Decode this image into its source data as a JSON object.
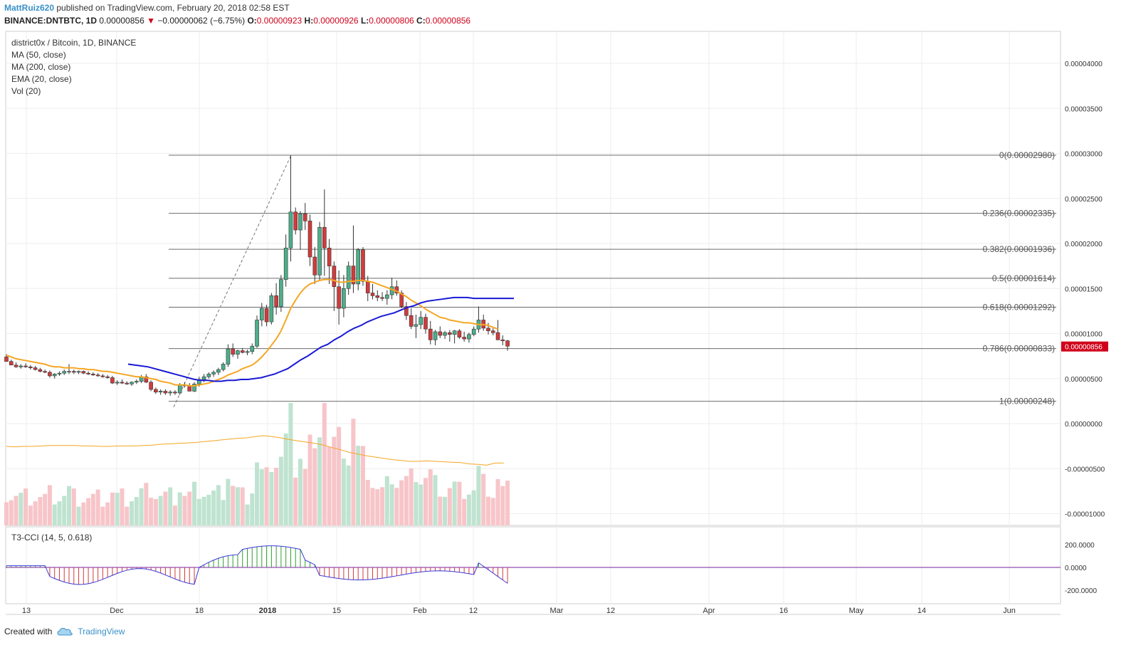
{
  "header": {
    "user": "MattRuiz620",
    "published": " published on TradingView.com, February 20, 2018 02:58 EST"
  },
  "ohlc": {
    "symbol": "BINANCE:DNTBTC, 1D",
    "last": "0.00000856",
    "change_arrow": "▼",
    "change": "−0.00000062 (−6.75%)",
    "o_label": "O:",
    "o": "0.00000923",
    "h_label": "H:",
    "h": "0.00000926",
    "l_label": "L:",
    "l": "0.00000806",
    "c_label": "C:",
    "c": "0.00000856"
  },
  "legend": {
    "title": "district0x / Bitcoin, 1D, BINANCE",
    "ma50": "MA (50, close)",
    "ma200": "MA (200, close)",
    "ema20": "EMA (20, close)",
    "vol": "Vol (20)"
  },
  "cci_label": "T3-CCI (14, 5, 0.618)",
  "footer": {
    "created": "Created with",
    "brand": "TradingView"
  },
  "colors": {
    "up": "#4caf8a",
    "down": "#d23b3b",
    "up_vol": "#bfe3d0",
    "down_vol": "#f7c5c9",
    "ma50": "#1919d6",
    "ema20": "#f5a623",
    "fib": "#6b6b6b",
    "price_tag": "#d0021b"
  },
  "chart_data": [
    {
      "type": "candlestick",
      "title": "district0x / Bitcoin, 1D, BINANCE",
      "x_ticks": [
        "13",
        "Dec",
        "18",
        "2018",
        "15",
        "Feb",
        "12",
        "Mar",
        "12",
        "Apr",
        "16",
        "May",
        "14",
        "Jun"
      ],
      "y_ticks": [
        "0.00004000",
        "0.00003500",
        "0.00003000",
        "0.00002500",
        "0.00002000",
        "0.00001500",
        "0.00001000",
        "0.00000500",
        "0.00000000",
        "-0.00000500",
        "-0.00001000"
      ],
      "ylim": [
        -1.02e-05,
        4.35e-05
      ],
      "last_price_tag": "0.00000856",
      "fib_levels": [
        {
          "label": "0(0.00002980)",
          "value": 2.98e-05
        },
        {
          "label": "0.236(0.00002335)",
          "value": 2.335e-05
        },
        {
          "label": "0.382(0.00001936)",
          "value": 1.936e-05
        },
        {
          "label": "0.5(0.00001614)",
          "value": 1.614e-05
        },
        {
          "label": "0.618(0.00001292)",
          "value": 1.292e-05
        },
        {
          "label": "0.786(0.00000833)",
          "value": 8.33e-06
        },
        {
          "label": "1(0.00000248)",
          "value": 2.48e-06
        }
      ],
      "candles_ohlc": [
        [
          7.4e-06,
          7.7e-06,
          6.9e-06,
          6.9e-06
        ],
        [
          6.9e-06,
          7.1e-06,
          6.5e-06,
          6.5e-06
        ],
        [
          6.5e-06,
          6.8e-06,
          6.2e-06,
          6.3e-06
        ],
        [
          6.3e-06,
          6.6e-06,
          6.1e-06,
          6.4e-06
        ],
        [
          6.4e-06,
          6.7e-06,
          6.2e-06,
          6.3e-06
        ],
        [
          6.3e-06,
          6.5e-06,
          6e-06,
          6.2e-06
        ],
        [
          6.2e-06,
          6.4e-06,
          5.9e-06,
          6e-06
        ],
        [
          6e-06,
          6.2e-06,
          5.7e-06,
          5.8e-06
        ],
        [
          5.8e-06,
          6e-06,
          5.6e-06,
          5.7e-06
        ],
        [
          5.7e-06,
          5.9e-06,
          5.1e-06,
          5.3e-06
        ],
        [
          5.3e-06,
          5.6e-06,
          5e-06,
          5.5e-06
        ],
        [
          5.5e-06,
          5.8e-06,
          5.3e-06,
          5.6e-06
        ],
        [
          5.6e-06,
          6e-06,
          5.4e-06,
          5.8e-06
        ],
        [
          5.8e-06,
          6.6e-06,
          5.5e-06,
          5.8e-06
        ],
        [
          5.8e-06,
          6e-06,
          5.5e-06,
          5.7e-06
        ],
        [
          5.7e-06,
          5.9e-06,
          5.5e-06,
          5.8e-06
        ],
        [
          5.8e-06,
          5.9e-06,
          5.5e-06,
          5.6e-06
        ],
        [
          5.6e-06,
          5.8e-06,
          5.4e-06,
          5.5e-06
        ],
        [
          5.5e-06,
          5.7e-06,
          5.3e-06,
          5.4e-06
        ],
        [
          5.4e-06,
          5.6e-06,
          5.2e-06,
          5.3e-06
        ],
        [
          5.3e-06,
          5.5e-06,
          5.1e-06,
          5.2e-06
        ],
        [
          5.2e-06,
          5.4e-06,
          5e-06,
          5.1e-06
        ],
        [
          5.1e-06,
          5.3e-06,
          4.4e-06,
          4.5e-06
        ],
        [
          4.5e-06,
          4.8e-06,
          4.3e-06,
          4.6e-06
        ],
        [
          4.6e-06,
          4.9e-06,
          4.4e-06,
          4.5e-06
        ],
        [
          4.5e-06,
          4.7e-06,
          4.3e-06,
          4.4e-06
        ],
        [
          4.4e-06,
          4.7e-06,
          4.2e-06,
          4.6e-06
        ],
        [
          4.6e-06,
          4.9e-06,
          4.4e-06,
          4.7e-06
        ],
        [
          4.7e-06,
          5.4e-06,
          4.5e-06,
          5.2e-06
        ],
        [
          5.2e-06,
          5.5e-06,
          4.5e-06,
          4.6e-06
        ],
        [
          4.6e-06,
          4.8e-06,
          3.6e-06,
          3.8e-06
        ],
        [
          3.8e-06,
          4e-06,
          3.3e-06,
          3.5e-06
        ],
        [
          3.5e-06,
          3.8e-06,
          3.2e-06,
          3.6e-06
        ],
        [
          3.6e-06,
          3.8e-06,
          3.2e-06,
          3.4e-06
        ],
        [
          3.4e-06,
          3.7e-06,
          3.1e-06,
          3.5e-06
        ],
        [
          3.5e-06,
          3.7e-06,
          3.2e-06,
          3.4e-06
        ],
        [
          3.4e-06,
          4.5e-06,
          3.2e-06,
          4.3e-06
        ],
        [
          4.3e-06,
          4.6e-06,
          4e-06,
          4.2e-06
        ],
        [
          4.2e-06,
          4.5e-06,
          3.9e-06,
          3.6e-06
        ],
        [
          3.6e-06,
          4.6e-06,
          3.5e-06,
          4.4e-06
        ],
        [
          4.4e-06,
          5.2e-06,
          4.1e-06,
          4.9e-06
        ],
        [
          4.9e-06,
          5.5e-06,
          4.6e-06,
          5.2e-06
        ],
        [
          5.2e-06,
          5.7e-06,
          5e-06,
          5.5e-06
        ],
        [
          5.5e-06,
          5.9e-06,
          5.2e-06,
          5.7e-06
        ],
        [
          5.7e-06,
          6.2e-06,
          5.4e-06,
          6e-06
        ],
        [
          6e-06,
          6.8e-06,
          5.8e-06,
          6.6e-06
        ],
        [
          6.6e-06,
          8.8e-06,
          6.3e-06,
          8.3e-06
        ],
        [
          8.3e-06,
          8.9e-06,
          7.4e-06,
          7.7e-06
        ],
        [
          7.7e-06,
          8.2e-06,
          7.2e-06,
          8.1e-06
        ],
        [
          8.1e-06,
          8.4e-06,
          7.8e-06,
          7.9e-06
        ],
        [
          7.9e-06,
          8.2e-06,
          7.6e-06,
          8e-06
        ],
        [
          8e-06,
          8.9e-06,
          7.7e-06,
          8.6e-06
        ],
        [
          8.6e-06,
          1.2e-05,
          8.4e-06,
          1.15e-05
        ],
        [
          1.15e-05,
          1.34e-05,
          1.08e-05,
          1.28e-05
        ],
        [
          1.28e-05,
          1.32e-05,
          1.08e-05,
          1.13e-05
        ],
        [
          1.13e-05,
          1.45e-05,
          1.1e-05,
          1.42e-05
        ],
        [
          1.42e-05,
          1.56e-05,
          1.21e-05,
          1.3e-05
        ],
        [
          1.3e-05,
          1.65e-05,
          1.24e-05,
          1.6e-05
        ],
        [
          1.6e-05,
          2.1e-05,
          1.52e-05,
          1.95e-05
        ],
        [
          1.95e-05,
          2.98e-05,
          1.8e-05,
          2.35e-05
        ],
        [
          2.35e-05,
          2.4e-05,
          2.1e-05,
          2.15e-05
        ],
        [
          2.15e-05,
          2.36e-05,
          1.93e-05,
          2.33e-05
        ],
        [
          2.33e-05,
          2.45e-05,
          2.15e-05,
          2.25e-05
        ],
        [
          2.25e-05,
          2.32e-05,
          1.75e-05,
          1.85e-05
        ],
        [
          1.85e-05,
          1.96e-05,
          1.55e-05,
          1.65e-05
        ],
        [
          1.65e-05,
          2.24e-05,
          1.58e-05,
          2.18e-05
        ],
        [
          2.18e-05,
          2.6e-05,
          1.64e-05,
          1.95e-05
        ],
        [
          1.95e-05,
          2.05e-05,
          1.55e-05,
          1.75e-05
        ],
        [
          1.75e-05,
          1.8e-05,
          1.25e-05,
          1.52e-05
        ],
        [
          1.52e-05,
          1.7e-05,
          1.1e-05,
          1.28e-05
        ],
        [
          1.28e-05,
          1.65e-05,
          1.18e-05,
          1.5e-05
        ],
        [
          1.5e-05,
          1.8e-05,
          1.43e-05,
          1.75e-05
        ],
        [
          1.75e-05,
          2.2e-05,
          1.45e-05,
          1.55e-05
        ],
        [
          1.55e-05,
          1.95e-05,
          1.48e-05,
          1.93e-05
        ],
        [
          1.93e-05,
          1.96e-05,
          1.53e-05,
          1.58e-05
        ],
        [
          1.58e-05,
          1.64e-05,
          1.36e-05,
          1.45e-05
        ],
        [
          1.45e-05,
          1.55e-05,
          1.38e-05,
          1.42e-05
        ],
        [
          1.42e-05,
          1.48e-05,
          1.36e-05,
          1.4e-05
        ],
        [
          1.4e-05,
          1.46e-05,
          1.36e-05,
          1.39e-05
        ],
        [
          1.39e-05,
          1.48e-05,
          1.32e-05,
          1.43e-05
        ],
        [
          1.43e-05,
          1.62e-05,
          1.38e-05,
          1.52e-05
        ],
        [
          1.52e-05,
          1.59e-05,
          1.42e-05,
          1.45e-05
        ],
        [
          1.45e-05,
          1.48e-05,
          1.28e-05,
          1.3e-05
        ],
        [
          1.3e-05,
          1.35e-05,
          1.15e-05,
          1.2e-05
        ],
        [
          1.2e-05,
          1.28e-05,
          1.05e-05,
          1.08e-05
        ],
        [
          1.08e-05,
          1.21e-05,
          9.5e-06,
          1.1e-05
        ],
        [
          1.1e-05,
          1.25e-05,
          1.05e-05,
          1.18e-05
        ],
        [
          1.18e-05,
          1.22e-05,
          1e-05,
          1.05e-05
        ],
        [
          1.05e-05,
          1.14e-05,
          8.8e-06,
          9.3e-06
        ],
        [
          9.3e-06,
          1.04e-05,
          8.7e-06,
          1.02e-05
        ],
        [
          1.02e-05,
          1.08e-05,
          9.5e-06,
          9.8e-06
        ],
        [
          9.8e-06,
          1.03e-05,
          9.4e-06,
          1.01e-05
        ],
        [
          1.01e-05,
          1.04e-05,
          9.1e-06,
          9.9e-06
        ],
        [
          9.9e-06,
          1.04e-05,
          8.9e-06,
          1.03e-05
        ],
        [
          1.03e-05,
          1.05e-05,
          9.4e-06,
          9.6e-06
        ],
        [
          9.6e-06,
          1.02e-05,
          9.1e-06,
          9.4e-06
        ],
        [
          9.4e-06,
          1.01e-05,
          9e-06,
          9.9e-06
        ],
        [
          9.9e-06,
          1.08e-05,
          9.7e-06,
          1.05e-05
        ],
        [
          1.05e-05,
          1.3e-05,
          1.01e-05,
          1.15e-05
        ],
        [
          1.15e-05,
          1.21e-05,
          1.03e-05,
          1.06e-05
        ],
        [
          1.06e-05,
          1.12e-05,
          9.9e-06,
          1.03e-05
        ],
        [
          1.03e-05,
          1.06e-05,
          9.8e-06,
          1.01e-05
        ],
        [
          1.01e-05,
          1.15e-05,
          9.4e-06,
          9.3e-06
        ],
        [
          9.3e-06,
          9.8e-06,
          8.7e-06,
          9.2e-06
        ],
        [
          9.2e-06,
          9.3e-06,
          8.1e-06,
          8.6e-06
        ]
      ],
      "ema20": [
        7.6e-06,
        7.4e-06,
        7.2e-06,
        7.1e-06,
        7e-06,
        6.9e-06,
        6.8e-06,
        6.7e-06,
        6.6e-06,
        6.4e-06,
        6.3e-06,
        6.3e-06,
        6.2e-06,
        6.2e-06,
        6.2e-06,
        6.1e-06,
        6.1e-06,
        6e-06,
        6e-06,
        5.9e-06,
        5.8e-06,
        5.8e-06,
        5.7e-06,
        5.6e-06,
        5.5e-06,
        5.4e-06,
        5.3e-06,
        5.2e-06,
        5.2e-06,
        5.1e-06,
        5e-06,
        4.9e-06,
        4.7e-06,
        4.6e-06,
        4.5e-06,
        4.3e-06,
        4.3e-06,
        4.3e-06,
        4.2e-06,
        4.2e-06,
        4.3e-06,
        4.4e-06,
        4.5e-06,
        4.7e-06,
        4.9e-06,
        5.1e-06,
        5.4e-06,
        5.6e-06,
        5.8e-06,
        6.1e-06,
        6.3e-06,
        6.5e-06,
        6.9e-06,
        7.4e-06,
        8e-06,
        8.7e-06,
        9.4e-06,
        1.03e-05,
        1.15e-05,
        1.28e-05,
        1.37e-05,
        1.45e-05,
        1.51e-05,
        1.55e-05,
        1.57e-05,
        1.59e-05,
        1.6e-05,
        1.6e-05,
        1.59e-05,
        1.57e-05,
        1.57e-05,
        1.58e-05,
        1.58e-05,
        1.59e-05,
        1.59e-05,
        1.58e-05,
        1.57e-05,
        1.55e-05,
        1.53e-05,
        1.51e-05,
        1.49e-05,
        1.47e-05,
        1.44e-05,
        1.41e-05,
        1.37e-05,
        1.34e-05,
        1.31e-05,
        1.27e-05,
        1.24e-05,
        1.21e-05,
        1.18e-05,
        1.17e-05,
        1.15e-05,
        1.14e-05,
        1.13e-05,
        1.12e-05,
        1.12e-05,
        1.11e-05,
        1.1e-05,
        1.1e-05,
        1.09e-05,
        1.07e-05,
        1.05e-05
      ],
      "ma50": [
        6.6e-06,
        6.5e-06,
        6.4e-06,
        6.3e-06,
        6.1e-06,
        5.9e-06,
        5.7e-06,
        5.5e-06,
        5.3e-06,
        5.1e-06,
        4.9e-06,
        4.8e-06,
        4.8e-06,
        4.7e-06,
        4.7e-06,
        4.8e-06,
        4.8e-06,
        4.9e-06,
        4.9e-06,
        5e-06,
        5.1e-06,
        5.3e-06,
        5.5e-06,
        5.8e-06,
        6.1e-06,
        6.6e-06,
        7.1e-06,
        7.5e-06,
        8e-06,
        8.5e-06,
        8.8e-06,
        9.3e-06,
        9.7e-06,
        1.02e-05,
        1.06e-05,
        1.09e-05,
        1.13e-05,
        1.16e-05,
        1.19e-05,
        1.21e-05,
        1.23e-05,
        1.26e-05,
        1.29e-05,
        1.31e-05,
        1.34e-05,
        1.36e-05,
        1.37e-05,
        1.38e-05,
        1.39e-05,
        1.4e-05,
        1.4e-05,
        1.4e-05,
        1.39e-05,
        1.39e-05,
        1.39e-05,
        1.39e-05,
        1.39e-05,
        1.39e-05,
        1.39e-05
      ],
      "volume_scale_note": "relative",
      "volume_ma20": [
        0.55,
        0.54,
        0.55,
        0.55,
        0.56,
        0.57,
        0.57,
        0.57,
        0.57,
        0.56,
        0.56,
        0.55,
        0.55,
        0.56,
        0.56,
        0.56,
        0.57,
        0.58,
        0.6,
        0.61,
        0.62,
        0.63,
        0.64,
        0.66,
        0.68,
        0.7,
        0.72,
        0.74,
        0.75,
        0.78,
        0.8,
        0.78,
        0.75,
        0.71,
        0.68,
        0.65,
        0.62,
        0.58,
        0.52,
        0.47,
        0.41,
        0.37,
        0.33,
        0.3,
        0.27,
        0.24,
        0.22,
        0.2,
        0.2,
        0.21,
        0.2,
        0.19,
        0.18,
        0.17,
        0.14,
        0.13,
        0.11,
        0.16,
        0.16
      ]
    },
    {
      "type": "line",
      "title": "T3-CCI (14, 5, 0.618)",
      "y_ticks": [
        "200.0000",
        "0.0000",
        "-200.0000"
      ],
      "ylim": [
        -300,
        300
      ]
    }
  ]
}
